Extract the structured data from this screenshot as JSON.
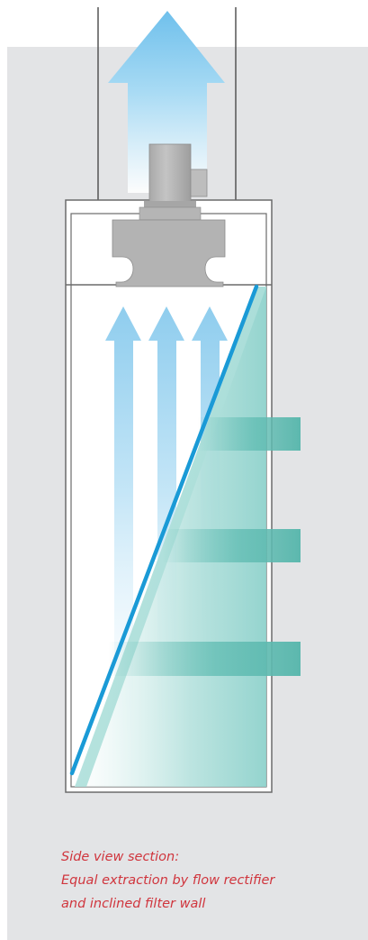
{
  "caption": {
    "line1": "Side view section:",
    "line2": "Equal extraction by flow rectifier",
    "line3": "and inclined filter wall"
  },
  "colors": {
    "background_panel": "#e3e4e6",
    "frame_stroke": "#6b6b6b",
    "fan_motor": "#b3b3b3",
    "airflow_blue": "#7fc6ea",
    "filter_wall": "#1a9ad6",
    "filter_glass": "#9dd7d3",
    "rectifier_teal": "#5fbcb2",
    "caption_red": "#d0353d"
  },
  "icons": [
    "exhaust-arrow-icon",
    "fan-motor-icon",
    "airflow-arrow-icon"
  ]
}
